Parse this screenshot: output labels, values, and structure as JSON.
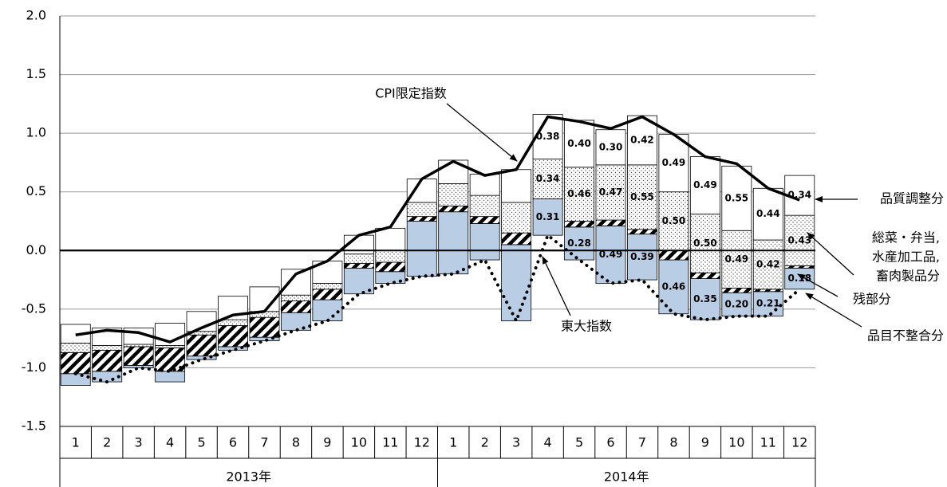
{
  "chart_data": {
    "type": "bar",
    "categories": [
      "1",
      "2",
      "3",
      "4",
      "5",
      "6",
      "7",
      "8",
      "9",
      "10",
      "11",
      "12",
      "1",
      "2",
      "3",
      "4",
      "5",
      "6",
      "7",
      "8",
      "9",
      "10",
      "11",
      "12"
    ],
    "category_groups": [
      "2013年",
      "2014年"
    ],
    "ylim": [
      -1.5,
      2.0
    ],
    "yticks": [
      {
        "value": -1.5,
        "label": "-1.5"
      },
      {
        "value": -1,
        "label": "-1.0"
      },
      {
        "value": -0.5,
        "label": "-0.5"
      },
      {
        "value": 0,
        "label": "0.0"
      },
      {
        "value": 0.5,
        "label": "0.5"
      },
      {
        "value": 1,
        "label": "1.0"
      },
      {
        "value": 1.5,
        "label": "1.5"
      },
      {
        "value": 2,
        "label": "2.0"
      }
    ],
    "grid": true,
    "series": [
      {
        "name": "品目不整合分",
        "color": "#b9cde5",
        "values": [
          -0.1,
          0.09,
          0.02,
          -0.09,
          0.03,
          0.03,
          0.03,
          0.15,
          0.18,
          0.22,
          0.1,
          0.47,
          0.53,
          0.31,
          0.65,
          0.31,
          0.28,
          0.49,
          0.39,
          0.46,
          0.35,
          0.2,
          0.21,
          0.18
        ],
        "value_labels": [
          null,
          null,
          null,
          null,
          null,
          null,
          null,
          null,
          null,
          null,
          null,
          null,
          null,
          null,
          null,
          "0.31",
          "0.28",
          "0.49",
          "0.39",
          "0.46",
          "0.35",
          "0.20",
          "0.21",
          "0.18"
        ]
      },
      {
        "name": "残部分",
        "pattern": "hatch",
        "values": [
          0.18,
          0.18,
          0.16,
          0.2,
          0.18,
          0.18,
          0.17,
          0.1,
          0.09,
          0.04,
          0.08,
          0.04,
          0.05,
          0.06,
          0.1,
          0,
          0.05,
          0.05,
          0.04,
          0.08,
          0.05,
          0.04,
          0.02,
          0.02
        ]
      },
      {
        "name": [
          "総菜・弁当,",
          "水産加工品,",
          "畜肉製品分"
        ],
        "pattern": "dots",
        "values": [
          0.08,
          0.04,
          0.02,
          0.02,
          0.03,
          0.05,
          0.05,
          0.05,
          0.05,
          0.08,
          0.1,
          0.12,
          0.19,
          0.18,
          0.26,
          0.34,
          0.46,
          0.47,
          0.55,
          0.5,
          0.5,
          0.49,
          0.42,
          0.43
        ],
        "value_labels": [
          null,
          null,
          null,
          null,
          null,
          null,
          null,
          null,
          null,
          null,
          null,
          null,
          null,
          null,
          null,
          "0.34",
          "0.46",
          "0.47",
          "0.55",
          "0.50",
          "0.50",
          "0.49",
          "0.42",
          "0.43"
        ]
      },
      {
        "name": "品質調整分",
        "color": "#ffffff",
        "values": [
          0.16,
          0.15,
          0.14,
          0.19,
          0.17,
          0.2,
          0.21,
          0.22,
          0.19,
          0.16,
          0.19,
          0.2,
          0.2,
          0.18,
          0.28,
          0.38,
          0.4,
          0.3,
          0.42,
          0.49,
          0.49,
          0.55,
          0.44,
          0.34
        ],
        "value_labels": [
          null,
          null,
          null,
          null,
          null,
          null,
          null,
          null,
          null,
          null,
          null,
          null,
          null,
          null,
          null,
          "0.38",
          "0.40",
          "0.30",
          "0.42",
          "0.49",
          "0.49",
          "0.55",
          "0.44",
          "0.34"
        ]
      }
    ],
    "lines": [
      {
        "name": "CPI限定指数",
        "color": "#000000",
        "values": [
          -0.72,
          -0.68,
          -0.7,
          -0.78,
          -0.66,
          -0.55,
          -0.52,
          -0.2,
          -0.09,
          0.13,
          0.2,
          0.61,
          0.76,
          0.64,
          0.69,
          1.14,
          1.1,
          1.04,
          1.14,
          0.99,
          0.8,
          0.74,
          0.53,
          0.43
        ]
      },
      {
        "name": "東大指数",
        "color": "#000000",
        "style": "dotted",
        "values": [
          -1.05,
          -1.12,
          -1.0,
          -1.03,
          -0.93,
          -0.85,
          -0.77,
          -0.68,
          -0.6,
          -0.37,
          -0.28,
          -0.22,
          -0.2,
          -0.08,
          -0.6,
          0.13,
          -0.08,
          -0.28,
          -0.25,
          -0.54,
          -0.59,
          -0.56,
          -0.56,
          -0.33
        ]
      }
    ]
  }
}
